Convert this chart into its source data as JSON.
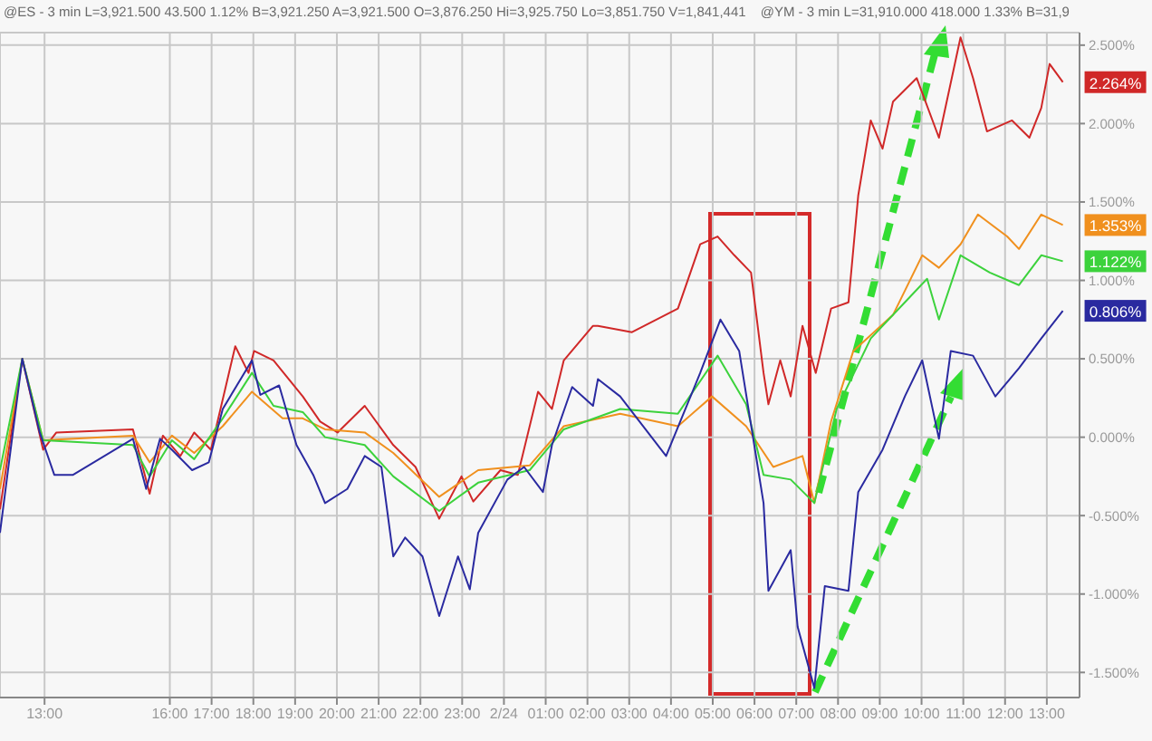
{
  "chart_data": {
    "type": "line",
    "annotations": [
      "@ES - 3 min L=3,921.500 43.500 1.12% B=3,921.250 A=3,921.500 O=3,876.250 Hi=3,925.750 Lo=3,851.750 V=1,841,441",
      "@YM - 3 min L=31,910.000 418.000 1.33% B=31,9"
    ],
    "xlim": [
      "--02-23T11:56",
      "--02-24T13:47"
    ],
    "xticks": [
      {
        "value": "--02-23T13:00",
        "label": "13:00"
      },
      {
        "value": "--02-23T16:00",
        "label": "16:00"
      },
      {
        "value": "--02-23T17:00",
        "label": "17:00"
      },
      {
        "value": "--02-23T18:00",
        "label": "18:00"
      },
      {
        "value": "--02-23T19:00",
        "label": "19:00"
      },
      {
        "value": "--02-23T20:00",
        "label": "20:00"
      },
      {
        "value": "--02-23T21:00",
        "label": "21:00"
      },
      {
        "value": "--02-23T22:00",
        "label": "22:00"
      },
      {
        "value": "--02-23T23:00",
        "label": "23:00"
      },
      {
        "value": "--02-24T00:00",
        "label": "2/24"
      },
      {
        "value": "--02-24T01:00",
        "label": "01:00"
      },
      {
        "value": "--02-24T02:00",
        "label": "02:00"
      },
      {
        "value": "--02-24T03:00",
        "label": "03:00"
      },
      {
        "value": "--02-24T04:00",
        "label": "04:00"
      },
      {
        "value": "--02-24T05:00",
        "label": "05:00"
      },
      {
        "value": "--02-24T06:00",
        "label": "06:00"
      },
      {
        "value": "--02-24T07:00",
        "label": "07:00"
      },
      {
        "value": "--02-24T08:00",
        "label": "08:00"
      },
      {
        "value": "--02-24T09:00",
        "label": "09:00"
      },
      {
        "value": "--02-24T10:00",
        "label": "10:00"
      },
      {
        "value": "--02-24T11:00",
        "label": "11:00"
      },
      {
        "value": "--02-24T12:00",
        "label": "12:00"
      },
      {
        "value": "--02-24T13:00",
        "label": "13:00"
      }
    ],
    "ylim": [
      -1.66,
      2.58
    ],
    "yticks": [
      {
        "value": -1.5,
        "label": "-1.500%"
      },
      {
        "value": -1,
        "label": "-1.000%"
      },
      {
        "value": -0.5,
        "label": "-0.500%"
      },
      {
        "value": 0,
        "label": "0.000%"
      },
      {
        "value": 0.5,
        "label": "0.500%"
      },
      {
        "value": 1,
        "label": "1.000%"
      },
      {
        "value": 1.5,
        "label": "1.500%"
      },
      {
        "value": 2,
        "label": "2.000%"
      },
      {
        "value": 2.5,
        "label": "2.500%"
      }
    ],
    "grid": true,
    "marker": "none",
    "line_style": "solid",
    "series": [
      {
        "color": "#d02828",
        "x": [
          "--02-23T11:56",
          "--02-23T12:28",
          "--02-23T12:58",
          "--02-23T13:17",
          "--02-23T15:07",
          "--02-23T15:31",
          "--02-23T15:50",
          "--02-23T16:15",
          "--02-23T16:35",
          "--02-23T16:59",
          "--02-23T17:34",
          "--02-23T17:53",
          "--02-23T18:01",
          "--02-23T18:29",
          "--02-23T19:11",
          "--02-23T19:36",
          "--02-23T20:01",
          "--02-23T20:40",
          "--02-23T21:21",
          "--02-23T21:53",
          "--02-23T22:27",
          "--02-23T22:59",
          "--02-23T23:16",
          "--02-23T23:55",
          "--02-24T00:20",
          "--02-24T00:49",
          "--02-24T01:09",
          "--02-24T01:26",
          "--02-24T02:08",
          "--02-24T02:15",
          "--02-24T03:04",
          "--02-24T04:10",
          "--02-24T04:42",
          "--02-24T05:07",
          "--02-24T05:31",
          "--02-24T05:55",
          "--02-24T06:13",
          "--02-24T06:20",
          "--02-24T06:37",
          "--02-24T06:52",
          "--02-24T07:09",
          "--02-24T07:28",
          "--02-24T07:50",
          "--02-24T08:15",
          "--02-24T08:29",
          "--02-24T08:47",
          "--02-24T09:04",
          "--02-24T09:19",
          "--02-24T09:53",
          "--02-24T10:25",
          "--02-24T10:56",
          "--02-24T11:14",
          "--02-24T11:34",
          "--02-24T12:10",
          "--02-24T12:35",
          "--02-24T12:52",
          "--02-24T13:04",
          "--02-24T13:23"
        ],
        "values": [
          -0.46,
          0.5,
          -0.08,
          0.03,
          0.05,
          -0.36,
          0.01,
          -0.12,
          0.03,
          -0.08,
          0.58,
          0.41,
          0.55,
          0.49,
          0.26,
          0.1,
          0.03,
          0.2,
          -0.05,
          -0.19,
          -0.52,
          -0.25,
          -0.41,
          -0.21,
          -0.24,
          0.29,
          0.18,
          0.49,
          0.71,
          0.71,
          0.67,
          0.82,
          1.23,
          1.28,
          1.16,
          1.05,
          0.41,
          0.21,
          0.49,
          0.26,
          0.71,
          0.41,
          0.82,
          0.86,
          1.54,
          2.02,
          1.84,
          2.14,
          2.29,
          1.91,
          2.55,
          2.29,
          1.95,
          2.02,
          1.91,
          2.1,
          2.38,
          2.264
        ],
        "value_labels": [
          null,
          null,
          null,
          null,
          null,
          null,
          null,
          null,
          null,
          null,
          null,
          null,
          null,
          null,
          null,
          null,
          null,
          null,
          null,
          null,
          null,
          null,
          null,
          null,
          null,
          null,
          null,
          null,
          null,
          null,
          null,
          null,
          null,
          null,
          null,
          null,
          null,
          null,
          null,
          null,
          null,
          null,
          null,
          null,
          null,
          null,
          null,
          null,
          null,
          null,
          null,
          null,
          null,
          null,
          null,
          null,
          null,
          "2.264%"
        ]
      },
      {
        "color": "#f0901e",
        "x": [
          "--02-23T11:56",
          "--02-23T12:28",
          "--02-23T12:58",
          "--02-23T15:07",
          "--02-23T15:31",
          "--02-23T16:03",
          "--02-23T16:35",
          "--02-23T17:16",
          "--02-23T17:58",
          "--02-23T18:42",
          "--02-23T19:11",
          "--02-23T19:43",
          "--02-23T20:40",
          "--02-23T21:21",
          "--02-23T22:27",
          "--02-23T23:23",
          "--02-24T00:37",
          "--02-24T01:26",
          "--02-24T02:47",
          "--02-24T04:10",
          "--02-24T04:59",
          "--02-24T05:48",
          "--02-24T06:27",
          "--02-24T07:09",
          "--02-24T07:26",
          "--02-24T07:50",
          "--02-24T08:22",
          "--02-24T09:19",
          "--02-24T10:01",
          "--02-24T10:25",
          "--02-24T10:56",
          "--02-24T11:21",
          "--02-24T12:03",
          "--02-24T12:20",
          "--02-24T12:52",
          "--02-24T13:23"
        ],
        "values": [
          -0.33,
          0.5,
          -0.02,
          0.01,
          -0.16,
          0.01,
          -0.1,
          0.07,
          0.29,
          0.12,
          0.12,
          0.05,
          0.03,
          -0.1,
          -0.38,
          -0.21,
          -0.18,
          0.07,
          0.15,
          0.07,
          0.26,
          0.07,
          -0.19,
          -0.12,
          -0.42,
          0.1,
          0.55,
          0.78,
          1.16,
          1.08,
          1.23,
          1.42,
          1.28,
          1.2,
          1.42,
          1.353
        ],
        "value_labels": [
          null,
          null,
          null,
          null,
          null,
          null,
          null,
          null,
          null,
          null,
          null,
          null,
          null,
          null,
          null,
          null,
          null,
          null,
          null,
          null,
          null,
          null,
          null,
          null,
          null,
          null,
          null,
          null,
          null,
          null,
          null,
          null,
          null,
          null,
          null,
          "1.353%"
        ]
      },
      {
        "color": "#3cd23c",
        "x": [
          "--02-23T11:56",
          "--02-23T12:28",
          "--02-23T12:58",
          "--02-23T15:07",
          "--02-23T15:31",
          "--02-23T16:03",
          "--02-23T16:35",
          "--02-23T17:16",
          "--02-23T17:58",
          "--02-23T18:29",
          "--02-23T19:11",
          "--02-23T19:43",
          "--02-23T20:40",
          "--02-23T21:21",
          "--02-23T22:27",
          "--02-23T23:23",
          "--02-24T00:37",
          "--02-24T01:26",
          "--02-24T02:47",
          "--02-24T04:10",
          "--02-24T05:07",
          "--02-24T05:48",
          "--02-24T06:13",
          "--02-24T06:52",
          "--02-24T07:26",
          "--02-24T07:58",
          "--02-24T08:47",
          "--02-24T09:36",
          "--02-24T10:08",
          "--02-24T10:25",
          "--02-24T10:56",
          "--02-24T11:38",
          "--02-24T12:20",
          "--02-24T12:52",
          "--02-24T13:23"
        ],
        "values": [
          -0.21,
          0.5,
          -0.02,
          -0.05,
          -0.25,
          -0.02,
          -0.14,
          0.12,
          0.41,
          0.2,
          0.16,
          0.0,
          -0.05,
          -0.25,
          -0.47,
          -0.29,
          -0.21,
          0.05,
          0.18,
          0.15,
          0.52,
          0.21,
          -0.24,
          -0.27,
          -0.42,
          0.18,
          0.63,
          0.86,
          1.01,
          0.75,
          1.16,
          1.05,
          0.97,
          1.16,
          1.122
        ],
        "value_labels": [
          null,
          null,
          null,
          null,
          null,
          null,
          null,
          null,
          null,
          null,
          null,
          null,
          null,
          null,
          null,
          null,
          null,
          null,
          null,
          null,
          null,
          null,
          null,
          null,
          null,
          null,
          null,
          null,
          null,
          null,
          null,
          null,
          null,
          null,
          "1.122%"
        ]
      },
      {
        "color": "#2a2aa0",
        "x": [
          "--02-23T11:56",
          "--02-23T12:28",
          "--02-23T12:53",
          "--02-23T13:14",
          "--02-23T13:41",
          "--02-23T15:07",
          "--02-23T15:26",
          "--02-23T15:46",
          "--02-23T16:03",
          "--02-23T16:32",
          "--02-23T16:56",
          "--02-23T17:16",
          "--02-23T17:58",
          "--02-23T18:10",
          "--02-23T18:37",
          "--02-23T19:02",
          "--02-23T19:26",
          "--02-23T19:43",
          "--02-23T20:15",
          "--02-23T20:40",
          "--02-23T21:04",
          "--02-23T21:21",
          "--02-23T21:38",
          "--02-23T22:03",
          "--02-23T22:27",
          "--02-23T22:54",
          "--02-23T23:11",
          "--02-23T23:23",
          "--02-24T00:05",
          "--02-24T00:29",
          "--02-24T00:56",
          "--02-24T01:09",
          "--02-24T01:38",
          "--02-24T02:08",
          "--02-24T02:15",
          "--02-24T02:47",
          "--02-24T03:53",
          "--02-24T04:42",
          "--02-24T05:11",
          "--02-24T05:38",
          "--02-24T06:13",
          "--02-24T06:20",
          "--02-24T06:52",
          "--02-24T07:02",
          "--02-24T07:26",
          "--02-24T07:41",
          "--02-24T08:15",
          "--02-24T08:29",
          "--02-24T09:04",
          "--02-24T09:36",
          "--02-24T10:01",
          "--02-24T10:25",
          "--02-24T10:42",
          "--02-24T11:14",
          "--02-24T11:46",
          "--02-24T12:20",
          "--02-24T12:52",
          "--02-24T13:23"
        ],
        "values": [
          -0.61,
          0.5,
          0.03,
          -0.24,
          -0.24,
          -0.01,
          -0.33,
          -0.01,
          -0.08,
          -0.21,
          -0.16,
          0.18,
          0.49,
          0.27,
          0.33,
          -0.05,
          -0.24,
          -0.42,
          -0.33,
          -0.12,
          -0.19,
          -0.76,
          -0.64,
          -0.76,
          -1.14,
          -0.76,
          -0.97,
          -0.61,
          -0.27,
          -0.19,
          -0.35,
          -0.05,
          0.32,
          0.2,
          0.37,
          0.26,
          -0.12,
          0.41,
          0.75,
          0.55,
          -0.42,
          -0.98,
          -0.72,
          -1.21,
          -1.6,
          -0.95,
          -0.98,
          -0.35,
          -0.08,
          0.26,
          0.49,
          -0.01,
          0.55,
          0.52,
          0.26,
          0.44,
          0.63,
          0.806
        ],
        "value_labels": [
          null,
          null,
          null,
          null,
          null,
          null,
          null,
          null,
          null,
          null,
          null,
          null,
          null,
          null,
          null,
          null,
          null,
          null,
          null,
          null,
          null,
          null,
          null,
          null,
          null,
          null,
          null,
          null,
          null,
          null,
          null,
          null,
          null,
          null,
          null,
          null,
          null,
          null,
          null,
          null,
          null,
          null,
          null,
          null,
          null,
          null,
          null,
          null,
          null,
          null,
          null,
          null,
          null,
          null,
          null,
          null,
          null,
          "0.806%"
        ]
      }
    ]
  }
}
